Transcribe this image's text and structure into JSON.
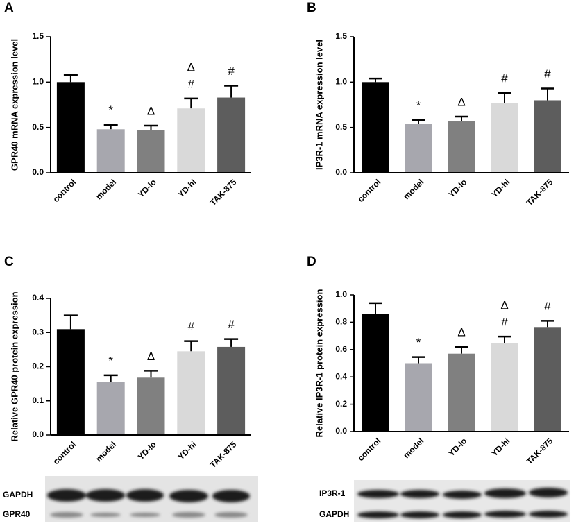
{
  "chart_data": [
    {
      "type": "bar",
      "panel": "A",
      "ylabel": "GPR40 mRNA expression level",
      "categories": [
        "control",
        "model",
        "YD-lo",
        "YD-hi",
        "TAK-875"
      ],
      "values": [
        1.0,
        0.48,
        0.47,
        0.71,
        0.83
      ],
      "errors": [
        0.08,
        0.05,
        0.05,
        0.11,
        0.13
      ],
      "colors": [
        "#000000",
        "#a7a7ae",
        "#808080",
        "#d9d9d9",
        "#5d5d5d"
      ],
      "annotations": [
        null,
        [
          "*"
        ],
        [
          "Δ"
        ],
        [
          "Δ",
          "#"
        ],
        [
          "#"
        ]
      ],
      "ylim": [
        0,
        1.5
      ],
      "yticks": [
        {
          "value": 0,
          "label": "0.0"
        },
        0.5,
        {
          "value": 1,
          "label": "1.0"
        },
        1.5
      ]
    },
    {
      "type": "bar",
      "panel": "B",
      "ylabel": "IP3R-1 mRNA expression level",
      "categories": [
        "control",
        "model",
        "YD-lo",
        "YD-hi",
        "TAK-875"
      ],
      "values": [
        1.0,
        0.54,
        0.57,
        0.77,
        0.8
      ],
      "errors": [
        0.04,
        0.04,
        0.05,
        0.11,
        0.13
      ],
      "colors": [
        "#000000",
        "#a7a7ae",
        "#808080",
        "#d9d9d9",
        "#5d5d5d"
      ],
      "annotations": [
        null,
        [
          "*"
        ],
        [
          "Δ"
        ],
        [
          "#"
        ],
        [
          "#"
        ]
      ],
      "ylim": [
        0,
        1.5
      ],
      "yticks": [
        {
          "value": 0,
          "label": "0.0"
        },
        0.5,
        {
          "value": 1,
          "label": "1.0"
        },
        1.5
      ]
    },
    {
      "type": "bar",
      "panel": "C",
      "ylabel": "Relative GPR40 protein expression",
      "categories": [
        "control",
        "model",
        "YD-lo",
        "YD-hi",
        "TAK-875"
      ],
      "values": [
        0.31,
        0.155,
        0.168,
        0.245,
        0.258
      ],
      "errors": [
        0.04,
        0.02,
        0.02,
        0.03,
        0.023
      ],
      "colors": [
        "#000000",
        "#a7a7ae",
        "#808080",
        "#d9d9d9",
        "#5d5d5d"
      ],
      "annotations": [
        null,
        [
          "*"
        ],
        [
          "Δ"
        ],
        [
          "#"
        ],
        [
          "#"
        ]
      ],
      "ylim": [
        0,
        0.4
      ],
      "yticks": [
        {
          "value": 0,
          "label": "0.0"
        },
        0.1,
        0.2,
        0.3,
        0.4
      ],
      "blot_labels": [
        "GAPDH",
        "GPR40"
      ]
    },
    {
      "type": "bar",
      "panel": "D",
      "ylabel": "Relative IP3R-1 protein expression",
      "categories": [
        "control",
        "model",
        "YD-lo",
        "YD-hi",
        "TAK-875"
      ],
      "values": [
        0.86,
        0.5,
        0.57,
        0.645,
        0.76
      ],
      "errors": [
        0.08,
        0.045,
        0.05,
        0.05,
        0.05
      ],
      "colors": [
        "#000000",
        "#a7a7ae",
        "#808080",
        "#d9d9d9",
        "#5d5d5d"
      ],
      "annotations": [
        null,
        [
          "*"
        ],
        [
          "Δ"
        ],
        [
          "Δ",
          "#"
        ],
        [
          "#"
        ]
      ],
      "ylim": [
        0,
        1
      ],
      "yticks": [
        {
          "value": 0,
          "label": "0.0"
        },
        0.2,
        0.4,
        0.6,
        0.8,
        {
          "value": 1,
          "label": "1.0"
        }
      ],
      "blot_labels": [
        "IP3R-1",
        "GAPDH"
      ]
    }
  ]
}
